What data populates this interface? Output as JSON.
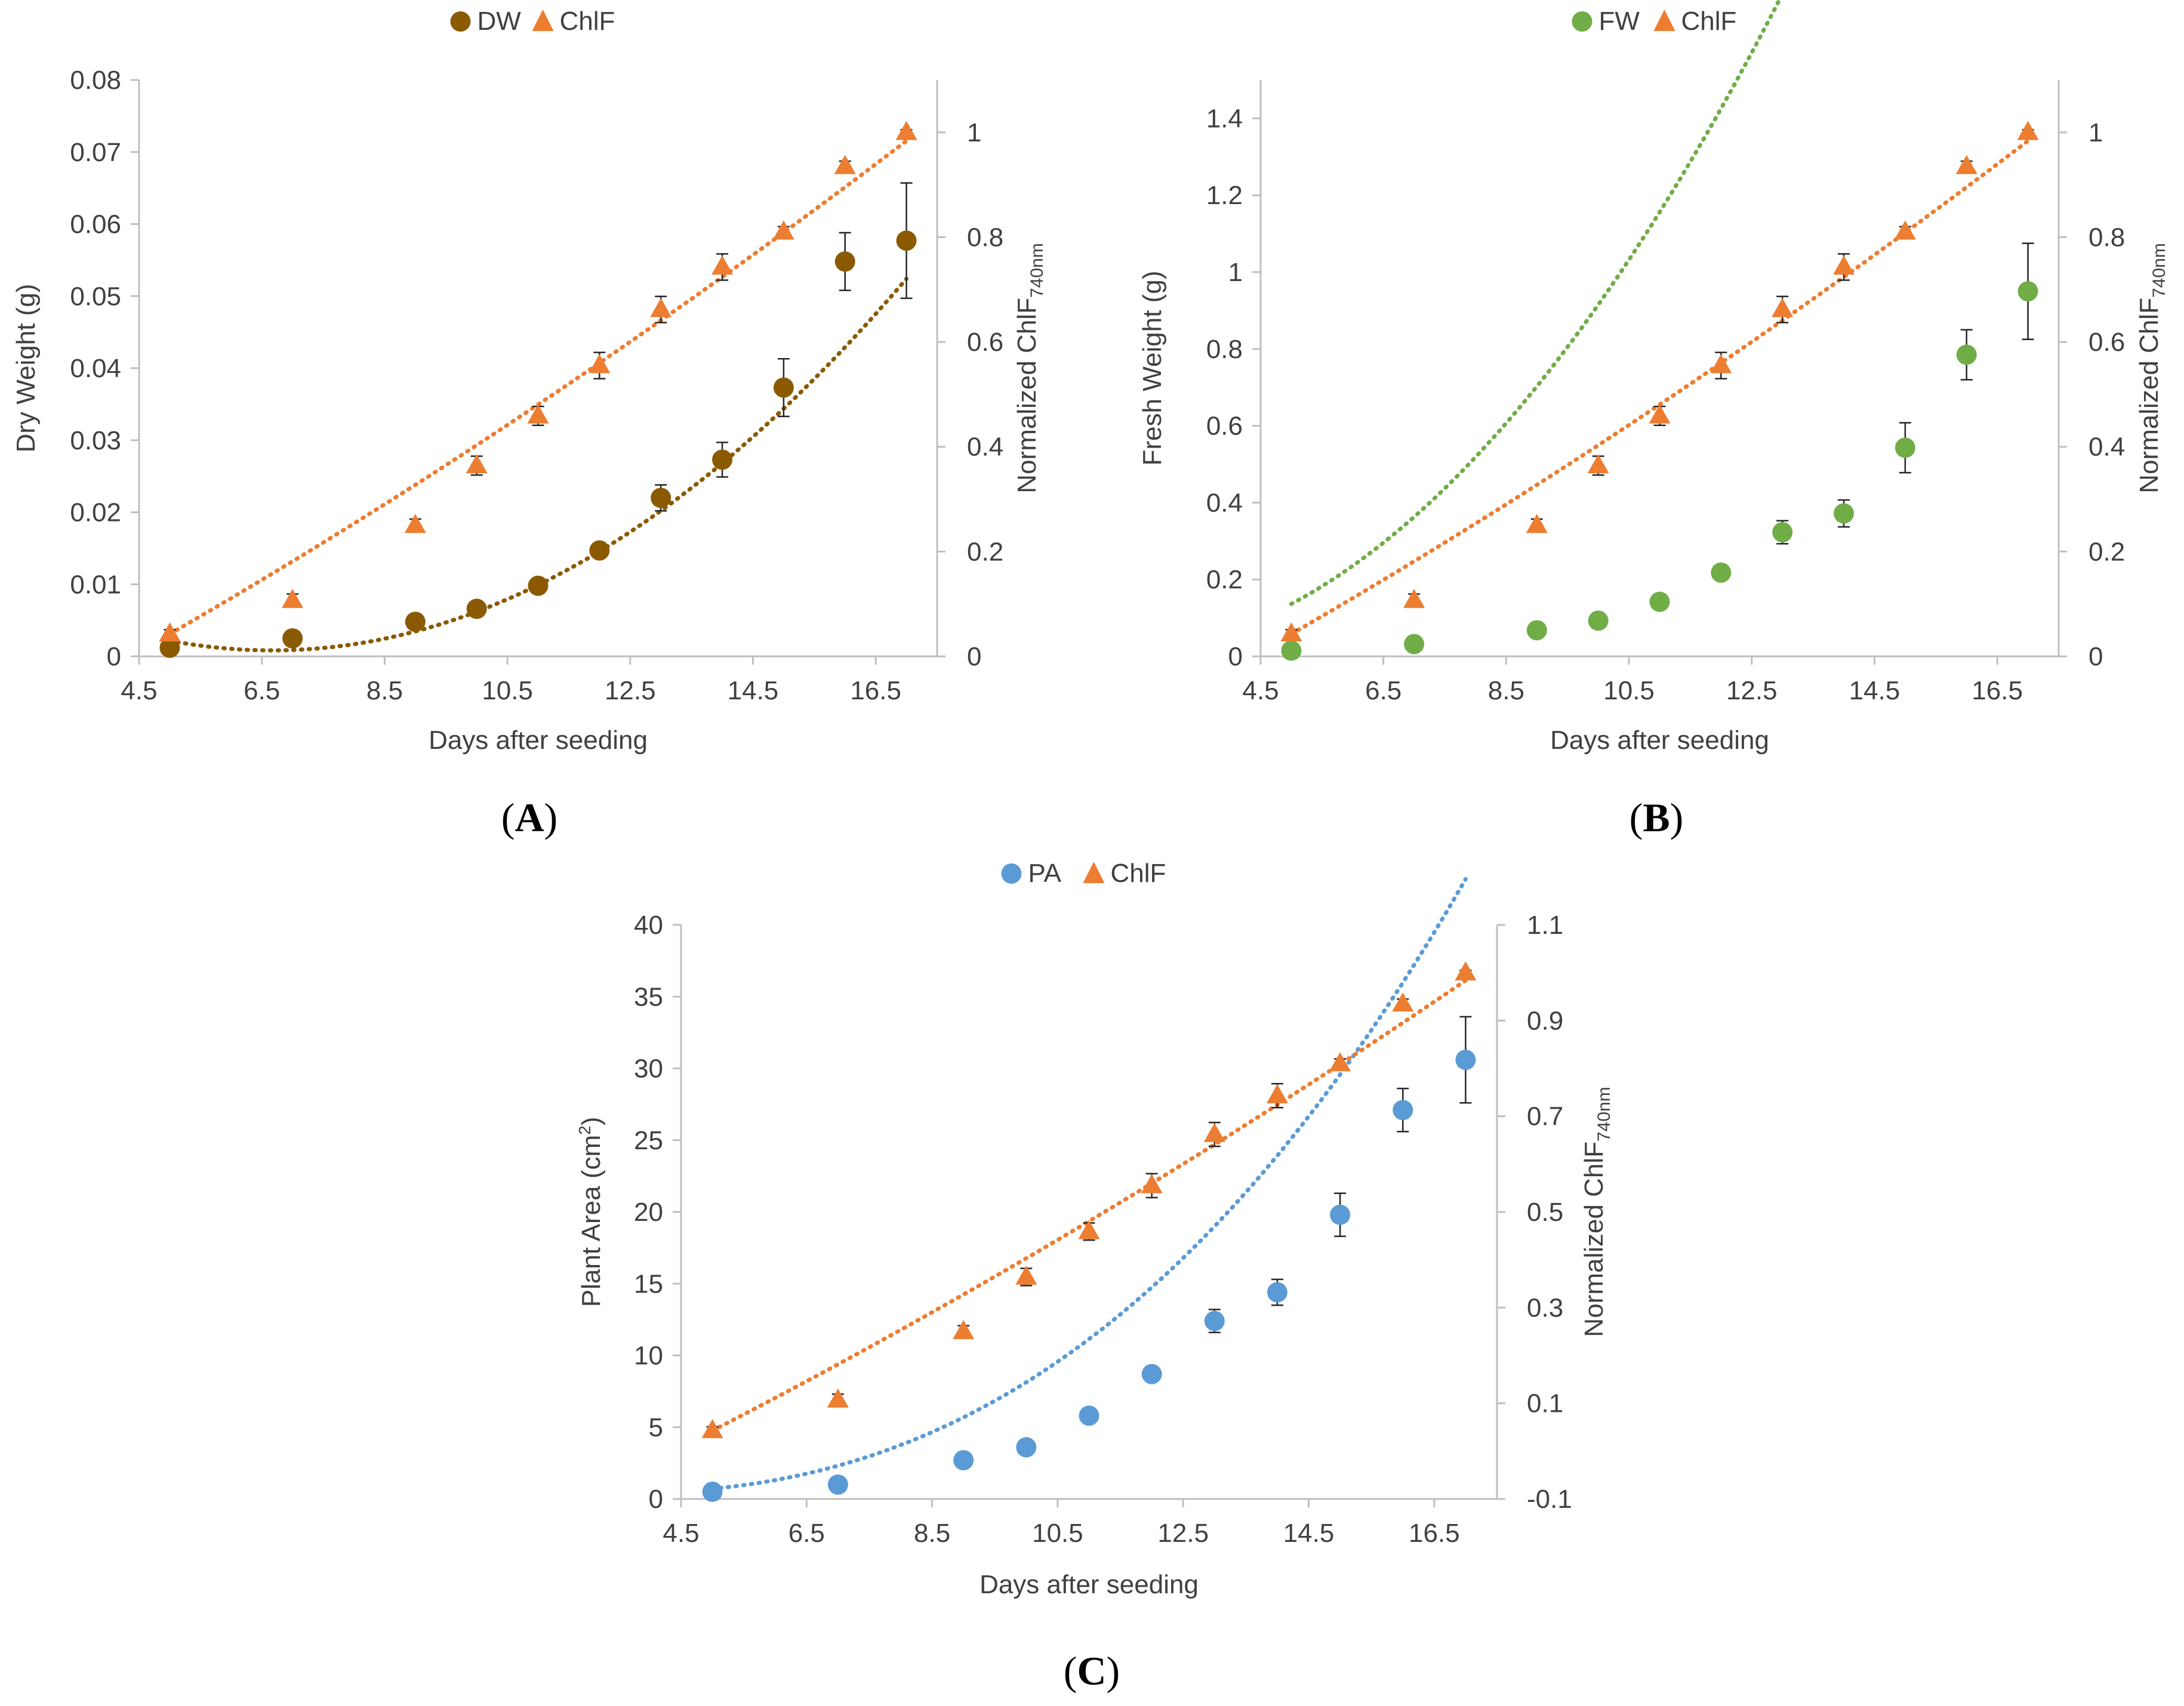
{
  "colors": {
    "dw": "#8B5A00",
    "fw": "#70AD47",
    "pa": "#5B9BD5",
    "chlf": "#ED7D31",
    "axis": "#BFBFBF",
    "text": "#404040",
    "errorbar": "#262626"
  },
  "chart_data": [
    {
      "type": "scatter",
      "panel_label": "A",
      "xlabel": "Days after seeding",
      "ylabel": "Dry Weight (g)",
      "y2label_main": "Normalized ChlF",
      "y2label_sub": "740nm",
      "xlim": [
        4.5,
        17.5
      ],
      "ylim": [
        0,
        0.08
      ],
      "y2lim": [
        0,
        1.1
      ],
      "xticks": [
        "4.5",
        "6.5",
        "8.5",
        "10.5",
        "12.5",
        "14.5",
        "16.5"
      ],
      "yticks": [
        "0",
        "0.01",
        "0.02",
        "0.03",
        "0.04",
        "0.05",
        "0.06",
        "0.07",
        "0.08"
      ],
      "y2ticks": [
        "0",
        "0.2",
        "0.4",
        "0.6",
        "0.8",
        "1"
      ],
      "legend_position": "top-center",
      "series": [
        {
          "name": "DW",
          "axis": "left",
          "marker": "circle",
          "colorKey": "dw",
          "x": [
            5,
            7,
            9,
            10,
            11,
            12,
            13,
            14,
            15,
            16,
            17
          ],
          "y": [
            0.0012,
            0.0025,
            0.0048,
            0.0066,
            0.0098,
            0.0147,
            0.022,
            0.0273,
            0.0373,
            0.0548,
            0.0577
          ],
          "err": [
            0.0003,
            0.0004,
            0.0005,
            0.0005,
            0.0006,
            0.0007,
            0.0018,
            0.0024,
            0.004,
            0.004,
            0.008
          ],
          "trend": [
            0.000483,
            -0.00644,
            0.0223
          ]
        },
        {
          "name": "ChlF",
          "axis": "right",
          "marker": "triangle",
          "colorKey": "chlf",
          "x": [
            5,
            7,
            9,
            10,
            11,
            12,
            13,
            14,
            15,
            16,
            17
          ],
          "y": [
            0.043,
            0.107,
            0.25,
            0.364,
            0.459,
            0.555,
            0.662,
            0.743,
            0.81,
            0.935,
            1.0
          ],
          "err": [
            0.008,
            0.012,
            0.012,
            0.018,
            0.018,
            0.025,
            0.025,
            0.025,
            0.01,
            0.01,
            0.005
          ],
          "trend": [
            0.00091,
            0.0584,
            -0.272
          ]
        }
      ]
    },
    {
      "type": "scatter",
      "panel_label": "B",
      "xlabel": "Days after seeding",
      "ylabel": "Fresh Weight (g)",
      "y2label_main": "Normalized ChlF",
      "y2label_sub": "740nm",
      "xlim": [
        4.5,
        17.5
      ],
      "ylim": [
        0,
        1.5
      ],
      "y2lim": [
        0,
        1.1
      ],
      "xticks": [
        "4.5",
        "6.5",
        "8.5",
        "10.5",
        "12.5",
        "14.5",
        "16.5"
      ],
      "yticks": [
        "0",
        "0.2",
        "0.4",
        "0.6",
        "0.8",
        "1",
        "1.2",
        "1.4"
      ],
      "y2ticks": [
        "0",
        "0.2",
        "0.4",
        "0.6",
        "0.8",
        "1"
      ],
      "legend_position": "top-center",
      "series": [
        {
          "name": "FW",
          "axis": "left",
          "marker": "circle",
          "colorKey": "fw",
          "x": [
            5,
            7,
            9,
            10,
            11,
            12,
            13,
            14,
            15,
            16,
            17
          ],
          "y": [
            0.015,
            0.032,
            0.068,
            0.093,
            0.142,
            0.218,
            0.323,
            0.372,
            0.543,
            0.785,
            0.95
          ],
          "err": [
            0.005,
            0.005,
            0.008,
            0.008,
            0.012,
            0.015,
            0.03,
            0.035,
            0.065,
            0.065,
            0.125
          ],
          "trend": [
            1e-05,
            0.01395,
            -0.0553,
            0.063
          ]
        },
        {
          "name": "ChlF",
          "axis": "right",
          "marker": "triangle",
          "colorKey": "chlf",
          "x": [
            5,
            7,
            9,
            10,
            11,
            12,
            13,
            14,
            15,
            16,
            17
          ],
          "y": [
            0.043,
            0.107,
            0.25,
            0.364,
            0.459,
            0.555,
            0.662,
            0.743,
            0.81,
            0.935,
            1.0
          ],
          "err": [
            0.008,
            0.012,
            0.012,
            0.018,
            0.018,
            0.025,
            0.025,
            0.025,
            0.01,
            0.01,
            0.005
          ],
          "trend": [
            0.00091,
            0.0584,
            -0.272
          ]
        }
      ]
    },
    {
      "type": "scatter",
      "panel_label": "C",
      "xlabel": "Days after seeding",
      "ylabel": "Plant Area (cm",
      "ylabel_sup": "2",
      "ylabel_end": ")",
      "y2label_main": "Normalized ChlF",
      "y2label_sub": "740nm",
      "xlim": [
        4.5,
        17.5
      ],
      "ylim": [
        0,
        40
      ],
      "y2lim": [
        -0.1,
        1.1
      ],
      "xticks": [
        "4.5",
        "6.5",
        "8.5",
        "10.5",
        "12.5",
        "14.5",
        "16.5"
      ],
      "yticks": [
        "0",
        "5",
        "10",
        "15",
        "20",
        "25",
        "30",
        "35",
        "40"
      ],
      "y2ticks": [
        "-0.1",
        "0.1",
        "0.3",
        "0.5",
        "0.7",
        "0.9",
        "1.1"
      ],
      "legend_position": "top-center",
      "series": [
        {
          "name": "PA",
          "axis": "left",
          "marker": "circle",
          "colorKey": "pa",
          "x": [
            5,
            7,
            9,
            10,
            11,
            12,
            13,
            14,
            15,
            16,
            17
          ],
          "y": [
            0.5,
            1.0,
            2.7,
            3.6,
            5.8,
            8.7,
            12.4,
            14.4,
            19.8,
            27.1,
            30.6
          ],
          "err": [
            0.1,
            0.1,
            0.2,
            0.2,
            0.3,
            0.4,
            0.8,
            0.9,
            1.5,
            1.5,
            3.0
          ],
          "trend": [
            0.0066,
            0.0825,
            -0.909,
            2.37
          ]
        },
        {
          "name": "ChlF",
          "axis": "right",
          "marker": "triangle",
          "colorKey": "chlf",
          "x": [
            5,
            7,
            9,
            10,
            11,
            12,
            13,
            14,
            15,
            16,
            17
          ],
          "y": [
            0.043,
            0.107,
            0.25,
            0.364,
            0.459,
            0.555,
            0.662,
            0.743,
            0.81,
            0.935,
            1.0
          ],
          "err": [
            0.008,
            0.012,
            0.012,
            0.018,
            0.018,
            0.025,
            0.025,
            0.025,
            0.01,
            0.01,
            0.005
          ],
          "trend": [
            0.00091,
            0.0584,
            -0.272
          ]
        }
      ]
    }
  ]
}
